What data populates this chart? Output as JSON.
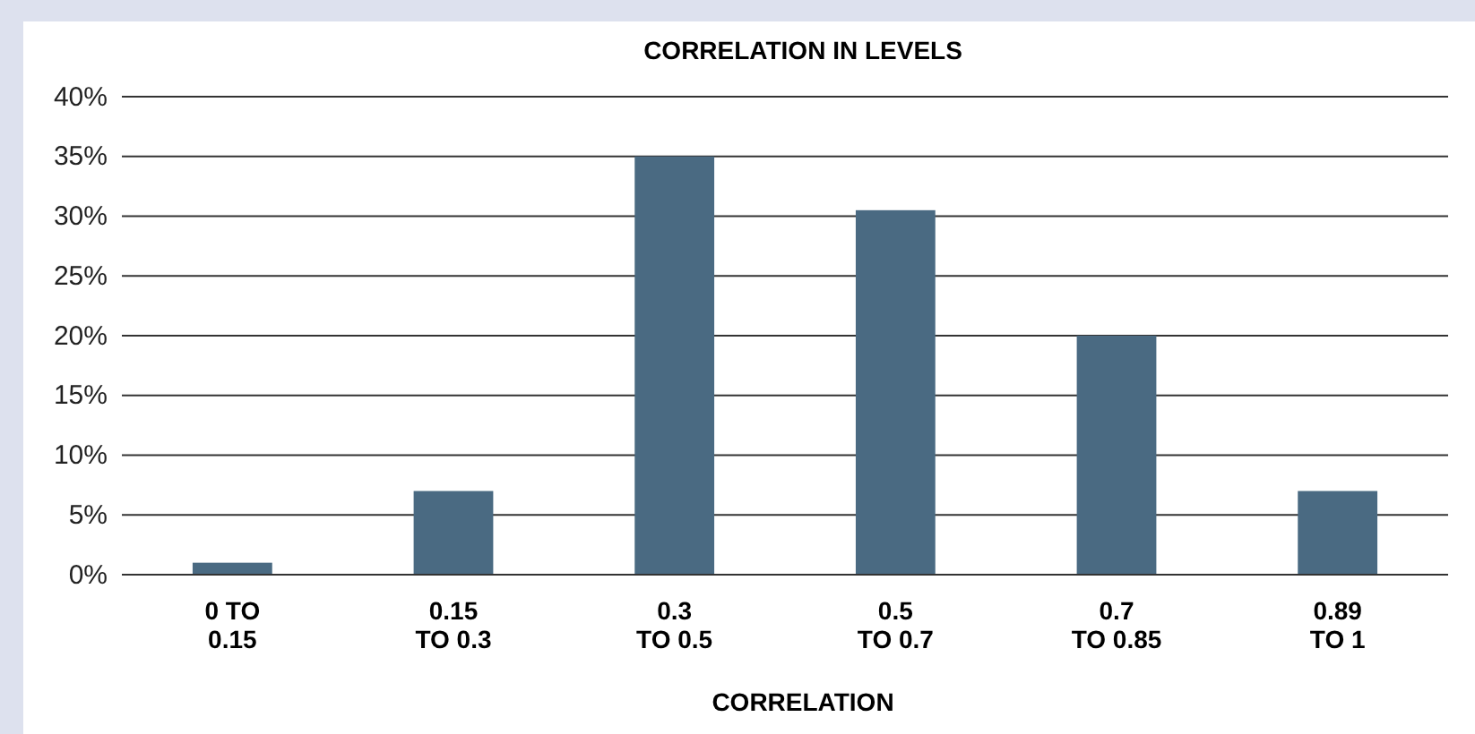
{
  "chart_data": {
    "type": "bar",
    "title": "CORRELATION IN LEVELS",
    "xlabel": "CORRELATION",
    "categories": [
      "0 TO\n0.15",
      "0.15\nTO 0.3",
      "0.3\nTO 0.5",
      "0.5\nTO 0.7",
      "0.7\nTO 0.85",
      "0.89\nTO 1"
    ],
    "values": [
      1,
      7,
      35,
      30.5,
      20,
      7
    ],
    "color": "#4a6a82",
    "ylim": [
      0,
      40
    ],
    "yticks": [
      {
        "value": 0,
        "label": "0%"
      },
      {
        "value": 5,
        "label": "5%"
      },
      {
        "value": 10,
        "label": "10%"
      },
      {
        "value": 15,
        "label": "15%"
      },
      {
        "value": 20,
        "label": "20%"
      },
      {
        "value": 25,
        "label": "25%"
      },
      {
        "value": 30,
        "label": "30%"
      },
      {
        "value": 35,
        "label": "35%"
      },
      {
        "value": 40,
        "label": "40%"
      }
    ],
    "grid": "y"
  }
}
